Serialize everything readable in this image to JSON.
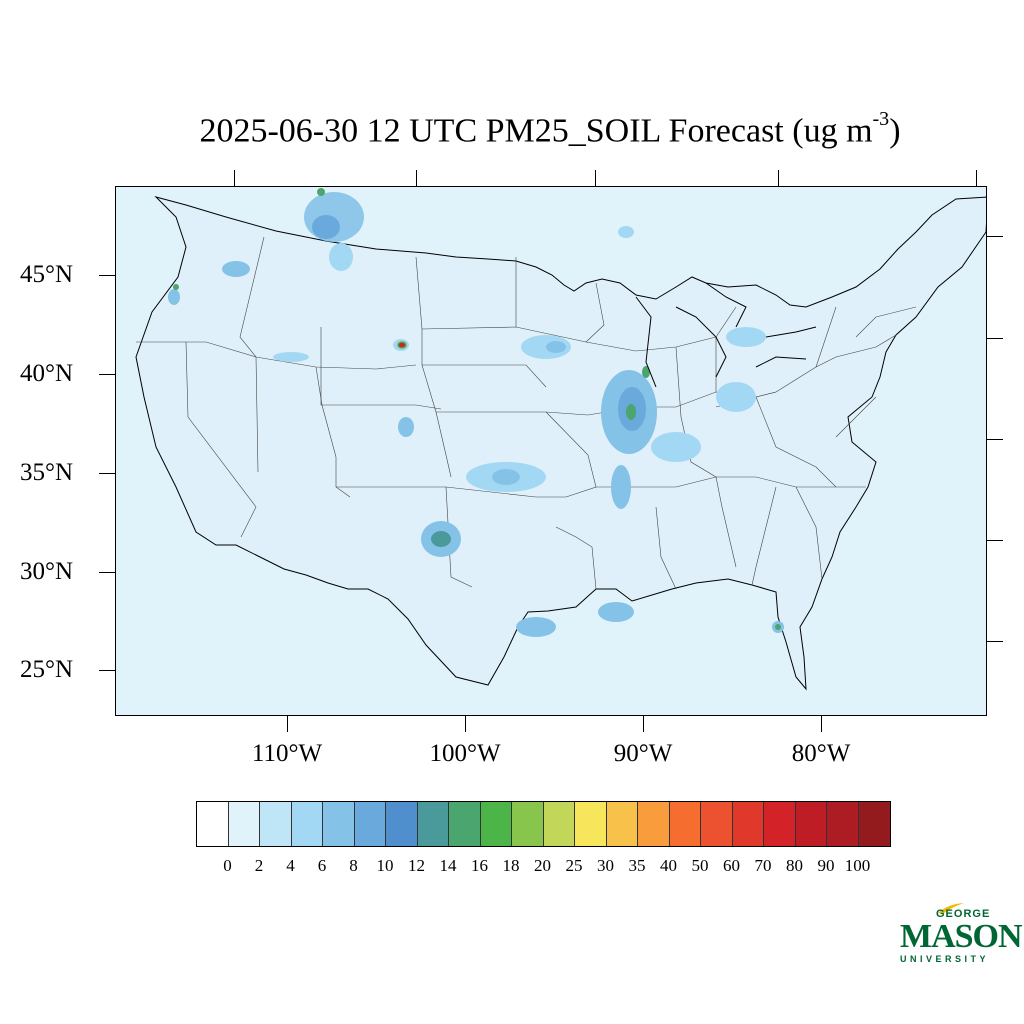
{
  "title": "2025-06-30 12 UTC PM25_SOIL Forecast (ug m",
  "title_sup": "-3",
  "title_end": ")",
  "lat_labels": [
    "45°N",
    "40°N",
    "35°N",
    "30°N",
    "25°N"
  ],
  "lon_labels": [
    "110°W",
    "100°W",
    "90°W",
    "80°W"
  ],
  "colorbar": {
    "labels": [
      "0",
      "2",
      "4",
      "6",
      "8",
      "10",
      "12",
      "14",
      "16",
      "18",
      "20",
      "25",
      "30",
      "35",
      "40",
      "50",
      "60",
      "70",
      "80",
      "90",
      "100"
    ],
    "colors": [
      "#ffffff",
      "#e0f3fb",
      "#bfe6f7",
      "#a2d8f3",
      "#85c2e8",
      "#6aa9dc",
      "#4f8fcd",
      "#4a9a9c",
      "#4aa56e",
      "#4cb548",
      "#87c54d",
      "#c2d75a",
      "#f7e65b",
      "#f8c149",
      "#f89c3c",
      "#f56e30",
      "#ec522f",
      "#e0392c",
      "#d42229",
      "#bf1d26",
      "#ad1b23",
      "#931a1d"
    ]
  },
  "logo": {
    "top": "GEORGE",
    "main": "MASON",
    "bottom": "UNIVERSITY"
  }
}
